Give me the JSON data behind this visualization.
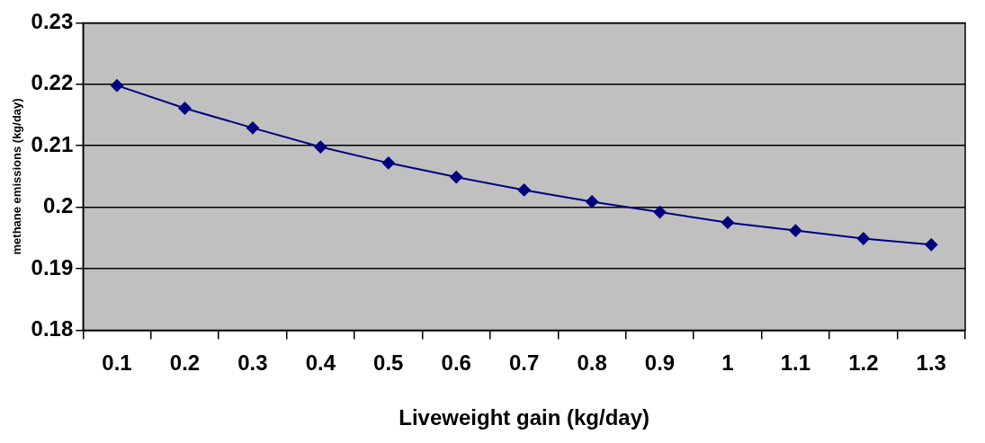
{
  "chart_data": {
    "type": "line",
    "xlabel": "Liveweight gain (kg/day)",
    "ylabel": "methane emissions (kg/day)",
    "categories": [
      "0.1",
      "0.2",
      "0.3",
      "0.4",
      "0.5",
      "0.6",
      "0.7",
      "0.8",
      "0.9",
      "1",
      "1.1",
      "1.2",
      "1.3"
    ],
    "series": [
      {
        "color": "#000080",
        "values": [
          0.2198,
          0.2161,
          0.2129,
          0.2098,
          0.2072,
          0.2049,
          0.2028,
          0.2009,
          0.1992,
          0.1975,
          0.1962,
          0.1949,
          0.1939
        ]
      }
    ],
    "ylim": [
      0.18,
      0.23
    ],
    "yticks": [
      0.18,
      0.19,
      0.2,
      0.21,
      0.22,
      0.23
    ],
    "grid": "y",
    "legend": false,
    "marker": "diamond",
    "line_style": "solid"
  }
}
